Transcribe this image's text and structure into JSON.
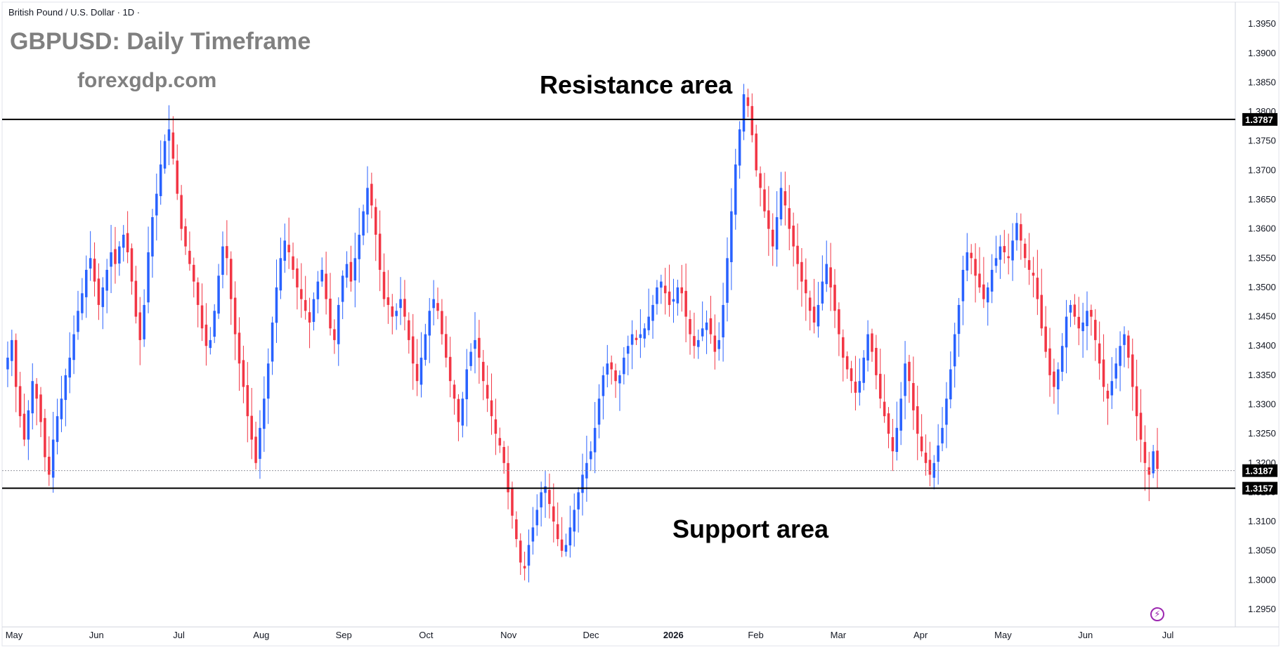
{
  "header": {
    "symbol_line": "British Pound / U.S. Dollar · 1D ·",
    "title": "GBPUSD: Daily Timeframe",
    "site": "forexgdp.com"
  },
  "annotations": {
    "resistance_label": "Resistance area",
    "support_label": "Support area",
    "resistance_level": 1.3787,
    "support_level": 1.3157,
    "last_price": 1.3187,
    "resistance_tag": "1.3787",
    "support_tag": "1.3157",
    "last_tag": "1.3187"
  },
  "colors": {
    "up": "#2962ff",
    "down": "#f23645",
    "level_line": "#000000",
    "tag_bg": "#000000"
  },
  "icons": {
    "alert": "lightning-icon"
  },
  "chart_data": {
    "type": "candlestick",
    "ylim": [
      1.292,
      1.3985
    ],
    "y_ticks": [
      "1.3950",
      "1.3900",
      "1.3850",
      "1.3800",
      "1.3750",
      "1.3700",
      "1.3650",
      "1.3600",
      "1.3550",
      "1.3500",
      "1.3450",
      "1.3400",
      "1.3350",
      "1.3300",
      "1.3250",
      "1.3200",
      "1.3150",
      "1.3100",
      "1.3050",
      "1.3000",
      "1.2950"
    ],
    "x_labels": [
      "May",
      "Jun",
      "Jul",
      "Aug",
      "Sep",
      "Oct",
      "Nov",
      "Dec",
      "2026",
      "Feb",
      "Mar",
      "Apr",
      "May",
      "Jun",
      "Jul"
    ],
    "close_series": [
      1.338,
      1.341,
      1.333,
      1.328,
      1.324,
      1.329,
      1.334,
      1.331,
      1.327,
      1.321,
      1.318,
      1.324,
      1.328,
      1.331,
      1.335,
      1.338,
      1.342,
      1.346,
      1.349,
      1.353,
      1.355,
      1.351,
      1.347,
      1.35,
      1.353,
      1.356,
      1.354,
      1.357,
      1.359,
      1.356,
      1.351,
      1.345,
      1.341,
      1.347,
      1.356,
      1.362,
      1.366,
      1.371,
      1.375,
      1.377,
      1.372,
      1.366,
      1.36,
      1.357,
      1.354,
      1.351,
      1.347,
      1.343,
      1.34,
      1.341,
      1.346,
      1.352,
      1.357,
      1.355,
      1.348,
      1.342,
      1.337,
      1.333,
      1.328,
      1.324,
      1.32,
      1.326,
      1.331,
      1.337,
      1.344,
      1.35,
      1.355,
      1.358,
      1.356,
      1.353,
      1.35,
      1.348,
      1.346,
      1.344,
      1.348,
      1.351,
      1.353,
      1.348,
      1.343,
      1.341,
      1.347,
      1.352,
      1.354,
      1.351,
      1.355,
      1.359,
      1.363,
      1.367,
      1.364,
      1.359,
      1.353,
      1.348,
      1.347,
      1.345,
      1.346,
      1.348,
      1.345,
      1.341,
      1.337,
      1.334,
      1.338,
      1.342,
      1.346,
      1.348,
      1.346,
      1.342,
      1.338,
      1.334,
      1.331,
      1.327,
      1.331,
      1.336,
      1.339,
      1.341,
      1.338,
      1.334,
      1.331,
      1.328,
      1.325,
      1.323,
      1.32,
      1.315,
      1.311,
      1.307,
      1.303,
      1.302,
      1.306,
      1.309,
      1.312,
      1.315,
      1.316,
      1.313,
      1.31,
      1.307,
      1.305,
      1.306,
      1.309,
      1.312,
      1.315,
      1.318,
      1.32,
      1.322,
      1.326,
      1.331,
      1.335,
      1.337,
      1.336,
      1.334,
      1.335,
      1.338,
      1.34,
      1.342,
      1.341,
      1.342,
      1.343,
      1.345,
      1.347,
      1.35,
      1.351,
      1.349,
      1.347,
      1.348,
      1.35,
      1.349,
      1.345,
      1.342,
      1.34,
      1.341,
      1.343,
      1.344,
      1.342,
      1.339,
      1.341,
      1.347,
      1.355,
      1.363,
      1.371,
      1.377,
      1.383,
      1.381,
      1.376,
      1.37,
      1.367,
      1.363,
      1.36,
      1.357,
      1.362,
      1.367,
      1.364,
      1.36,
      1.357,
      1.354,
      1.351,
      1.349,
      1.346,
      1.344,
      1.347,
      1.351,
      1.354,
      1.35,
      1.346,
      1.342,
      1.338,
      1.336,
      1.334,
      1.332,
      1.334,
      1.338,
      1.342,
      1.339,
      1.335,
      1.331,
      1.328,
      1.325,
      1.322,
      1.326,
      1.331,
      1.337,
      1.334,
      1.329,
      1.325,
      1.322,
      1.32,
      1.318,
      1.32,
      1.323,
      1.326,
      1.331,
      1.336,
      1.342,
      1.347,
      1.353,
      1.356,
      1.355,
      1.352,
      1.35,
      1.348,
      1.35,
      1.353,
      1.355,
      1.357,
      1.356,
      1.355,
      1.358,
      1.361,
      1.358,
      1.355,
      1.353,
      1.352,
      1.348,
      1.343,
      1.339,
      1.335,
      1.333,
      1.336,
      1.34,
      1.345,
      1.347,
      1.345,
      1.343,
      1.344,
      1.346,
      1.345,
      1.341,
      1.337,
      1.333,
      1.331,
      1.334,
      1.337,
      1.34,
      1.342,
      1.338,
      1.333,
      1.328,
      1.324,
      1.32,
      1.318,
      1.322,
      1.319
    ]
  }
}
